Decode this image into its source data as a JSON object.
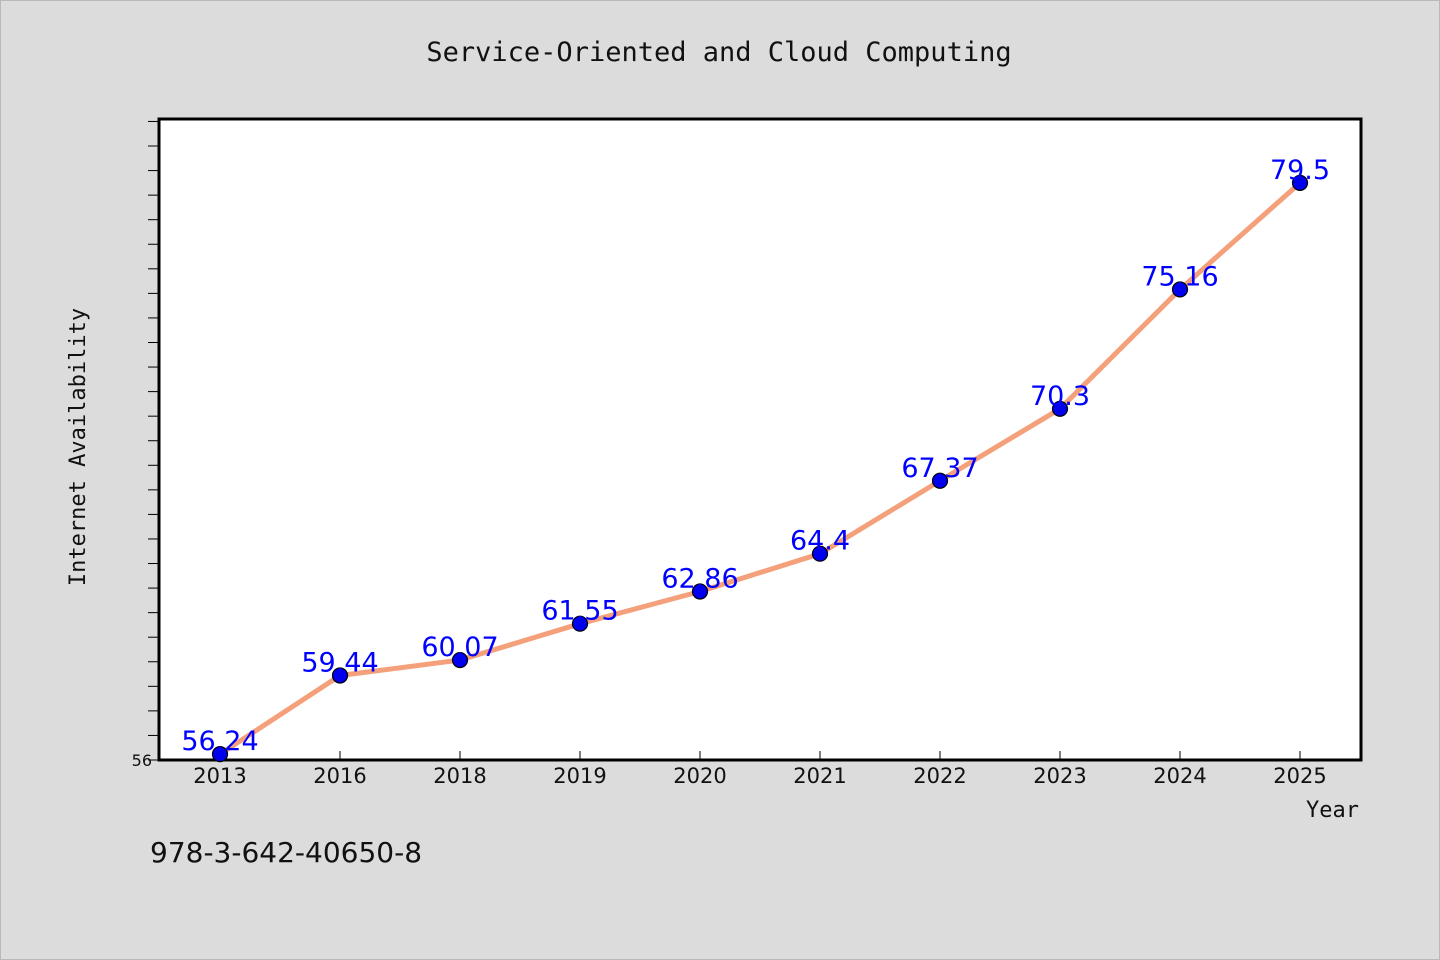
{
  "chart_data": {
    "type": "line",
    "title": "Service-Oriented and Cloud Computing",
    "xlabel": "Year",
    "ylabel": "Internet Availability",
    "categories": [
      "2013",
      "2016",
      "2018",
      "2019",
      "2020",
      "2021",
      "2022",
      "2023",
      "2024",
      "2025"
    ],
    "series": [
      {
        "values": [
          56.24,
          59.44,
          60.07,
          61.55,
          62.86,
          64.4,
          67.37,
          70.3,
          75.16,
          79.5
        ],
        "labels": [
          "56.24",
          "59.44",
          "60.07",
          "61.55",
          "62.86",
          "64.4",
          "67.37",
          "70.3",
          "75.16",
          "79.5"
        ]
      }
    ],
    "ylim": [
      56,
      82.1
    ],
    "y_tick_labels": [
      "56"
    ],
    "grid": false,
    "legend": false,
    "colors": {
      "line": "#f4a07a",
      "marker": "#0000ee",
      "data_label": "#0000ff",
      "background": "#dcdcdc",
      "plot_background": "#ffffff"
    }
  },
  "footnote": "978-3-642-40650-8"
}
